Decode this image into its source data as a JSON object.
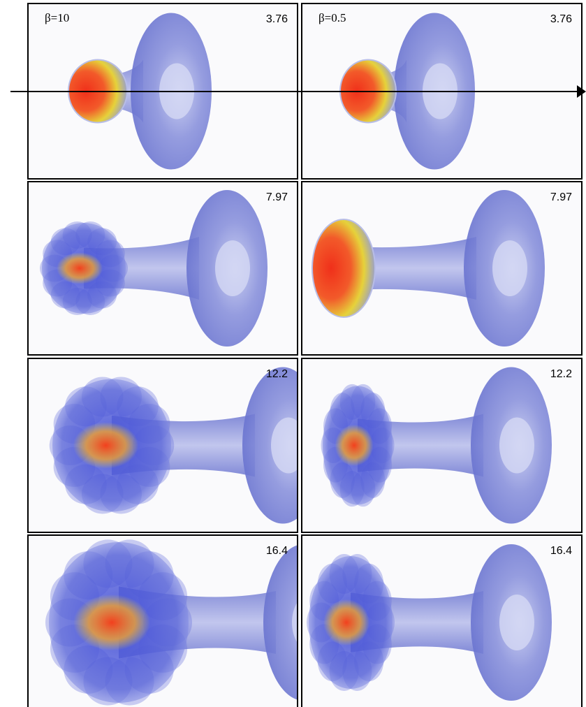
{
  "panels": [
    {
      "label": "β=10",
      "time": "3.76"
    },
    {
      "label": "β=0.5",
      "time": "3.76"
    },
    {
      "time": "7.97"
    },
    {
      "time": "7.97"
    },
    {
      "time": "12.2"
    },
    {
      "time": "12.2"
    },
    {
      "time": "16.4"
    },
    {
      "time": "16.4"
    }
  ]
}
